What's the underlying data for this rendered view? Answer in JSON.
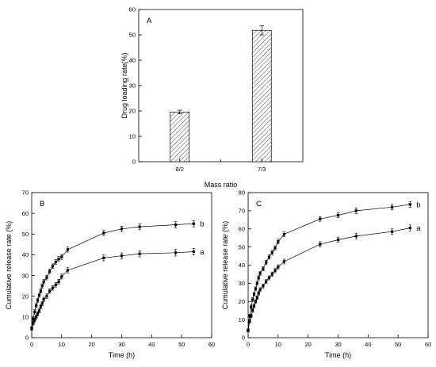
{
  "chart_data": [
    {
      "type": "bar",
      "panel_label": "A",
      "xlabel": "Mass ratio",
      "ylabel": "Drug loading rate(%)",
      "categories": [
        "8/2",
        "7/3"
      ],
      "values": [
        19.6,
        51.8
      ],
      "errors": [
        0.7,
        1.8
      ],
      "ylim": [
        0,
        60
      ],
      "yticks": [
        0,
        10,
        20,
        30,
        40,
        50,
        60
      ],
      "bar_pattern": "diagonal-hatch",
      "grid": false
    },
    {
      "type": "line",
      "panel_label": "B",
      "xlabel": "Time (h)",
      "ylabel": "Cumulative release rate (%)",
      "xlim": [
        0,
        60
      ],
      "ylim": [
        0,
        70
      ],
      "xticks": [
        0,
        10,
        20,
        30,
        40,
        50,
        60
      ],
      "yticks": [
        0,
        10,
        20,
        30,
        40,
        50,
        60,
        70
      ],
      "grid": false,
      "series": [
        {
          "name": "b",
          "marker": "square",
          "x": [
            0,
            0.5,
            1,
            1.5,
            2,
            2.5,
            3,
            3.5,
            4,
            5,
            6,
            7,
            8,
            9,
            10,
            12,
            24,
            30,
            36,
            48,
            54
          ],
          "y": [
            4.5,
            9,
            12.5,
            15.5,
            18,
            20.5,
            22.5,
            25,
            27,
            29,
            32,
            34.5,
            36.5,
            38,
            39,
            42.5,
            50.5,
            52.5,
            53.5,
            54.5,
            55
          ],
          "errors": [
            0.8,
            0.9,
            1,
            1,
            1,
            1,
            1,
            1,
            1.1,
            1.1,
            1.1,
            1.1,
            1.2,
            1.2,
            1.2,
            1.2,
            1.2,
            1.3,
            1.4,
            1.5,
            1.5
          ]
        },
        {
          "name": "a",
          "marker": "square",
          "x": [
            0,
            0.5,
            1,
            1.5,
            2,
            2.5,
            3,
            3.5,
            4,
            5,
            6,
            7,
            8,
            9,
            10,
            12,
            24,
            30,
            36,
            48,
            54
          ],
          "y": [
            4.5,
            7,
            8.5,
            10,
            11.5,
            13,
            15,
            16.5,
            18.5,
            20,
            22.5,
            24,
            25.5,
            27,
            29.5,
            32.5,
            38.5,
            39.5,
            40.5,
            41,
            41.5
          ],
          "errors": [
            0.8,
            0.9,
            0.9,
            1,
            1,
            1,
            1,
            1,
            1,
            1.1,
            1.1,
            1.1,
            1.1,
            1.2,
            1.2,
            1.3,
            1.4,
            1.4,
            1.5,
            1.6,
            1.6
          ]
        }
      ]
    },
    {
      "type": "line",
      "panel_label": "C",
      "xlabel": "Time (h)",
      "ylabel": "Cumulative release rate (%)",
      "xlim": [
        0,
        60
      ],
      "ylim": [
        0,
        80
      ],
      "xticks": [
        0,
        10,
        20,
        30,
        40,
        50,
        60
      ],
      "yticks": [
        0,
        10,
        20,
        30,
        40,
        50,
        60,
        70,
        80
      ],
      "grid": false,
      "series": [
        {
          "name": "b",
          "marker": "square",
          "x": [
            0,
            0.5,
            1,
            1.5,
            2,
            2.5,
            3,
            3.5,
            4,
            5,
            6,
            7,
            8,
            9,
            10,
            12,
            24,
            30,
            36,
            48,
            54
          ],
          "y": [
            4,
            12,
            17,
            21,
            24,
            27,
            30,
            33,
            35.5,
            38,
            41.5,
            44.5,
            47,
            49.5,
            53,
            57,
            65.5,
            67.5,
            70,
            72,
            73.5
          ],
          "errors": [
            0.8,
            1,
            1,
            1,
            1,
            1,
            1.1,
            1.1,
            1.1,
            1.1,
            1.2,
            1.2,
            1.2,
            1.2,
            1.3,
            1.3,
            1.3,
            1.4,
            1.5,
            1.5,
            1.6
          ]
        },
        {
          "name": "a",
          "marker": "square",
          "x": [
            0,
            0.5,
            1,
            1.5,
            2,
            2.5,
            3,
            3.5,
            4,
            5,
            6,
            7,
            8,
            9,
            10,
            12,
            24,
            30,
            36,
            48,
            54
          ],
          "y": [
            4,
            9,
            12,
            15,
            17.5,
            20,
            22,
            24.5,
            26.5,
            28.5,
            31,
            33,
            35,
            37,
            39,
            42,
            51.5,
            54,
            56,
            58.5,
            60.5
          ],
          "errors": [
            0.8,
            0.9,
            0.9,
            1,
            1,
            1,
            1,
            1,
            1.1,
            1.1,
            1.1,
            1.1,
            1.2,
            1.2,
            1.2,
            1.3,
            1.4,
            1.4,
            1.5,
            1.6,
            1.6
          ]
        }
      ]
    }
  ]
}
